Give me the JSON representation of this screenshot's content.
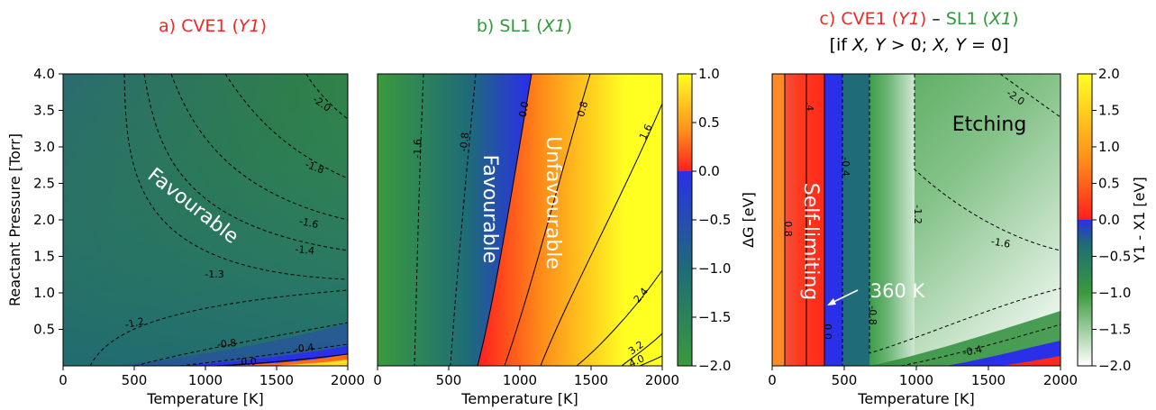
{
  "colors": {
    "red_title": "#ee2a24",
    "green_title": "#2f9a37",
    "green": "#3a9a3c",
    "teal": "#1f6e75",
    "blue": "#2a2fe8",
    "red": "#ff2020",
    "orange": "#ff8a2a",
    "yellow": "#ffff20"
  },
  "chart_data": [
    {
      "panel": "a",
      "type": "heatmap",
      "title": {
        "prefix": "a) CVE1 (",
        "var": "Y1",
        "suffix": ")"
      },
      "xlabel": "Temperature [K]",
      "ylabel": "Reactant Pressure [Torr]",
      "xlim": [
        0,
        2000
      ],
      "ylim": [
        0,
        4.0
      ],
      "x_ticks": [
        "0",
        "500",
        "1000",
        "1500",
        "2000"
      ],
      "y_ticks": [
        "0.5",
        "1.0",
        "1.5",
        "2.0",
        "2.5",
        "3.0",
        "3.5",
        "4.0"
      ],
      "contour_labels": [
        "-2.0",
        "-1.8",
        "-1.6",
        "-1.4",
        "-1.3",
        "-1.2",
        "-0.8",
        "-0.4",
        "0.0"
      ],
      "region_labels": [
        "Favourable"
      ]
    },
    {
      "panel": "b",
      "type": "heatmap",
      "title": {
        "prefix": "b) SL1 (",
        "var": "X1",
        "suffix": ")"
      },
      "xlabel": "Temperature [K]",
      "xlim": [
        0,
        2000
      ],
      "ylim": [
        0,
        4.0
      ],
      "x_ticks": [
        "0",
        "500",
        "1000",
        "1500",
        "2000"
      ],
      "contour_labels": [
        "-1.6",
        "-0.8",
        "0.0",
        "0.8",
        "1.6",
        "2.4",
        "3.2",
        "4.0"
      ],
      "region_labels": [
        "Favourable",
        "Unfavourable"
      ],
      "colorbar": {
        "label": "ΔG [eV]",
        "range": [
          -2.0,
          1.0
        ],
        "ticks": [
          "1.0",
          "0.5",
          "0.0",
          "−0.5",
          "−1.0",
          "−1.5",
          "−2.0"
        ]
      }
    },
    {
      "panel": "c",
      "type": "heatmap",
      "title": {
        "p1": "c) CVE1 (",
        "v1": "Y1",
        "p2": ") – SL1 (",
        "v2": "X1",
        "p3": ")",
        "l2a": "[if ",
        "l2v1": "X, Y",
        "l2b": " > 0; ",
        "l2v2": "X, Y",
        "l2c": " = 0]"
      },
      "xlabel": "Temperature [K]",
      "xlim": [
        0,
        2000
      ],
      "x_ticks": [
        "0",
        "500",
        "1000",
        "1500",
        "2000"
      ],
      "contour_labels": [
        "-2.0",
        "-1.6",
        "-1.2",
        "-0.8",
        "-0.4",
        "0.0",
        "0.8",
        ".4",
        "-0.4"
      ],
      "region_labels": [
        "Etching",
        "Self-limiting"
      ],
      "annotations": [
        {
          "text": "360 K",
          "x": 360
        }
      ],
      "colorbar": {
        "label": "Y1 - X1 [eV]",
        "range": [
          -2.0,
          2.0
        ],
        "ticks": [
          "2.0",
          "1.5",
          "1.0",
          "0.5",
          "0.0",
          "−0.5",
          "−1.0",
          "−1.5",
          "−2.0"
        ]
      }
    }
  ]
}
